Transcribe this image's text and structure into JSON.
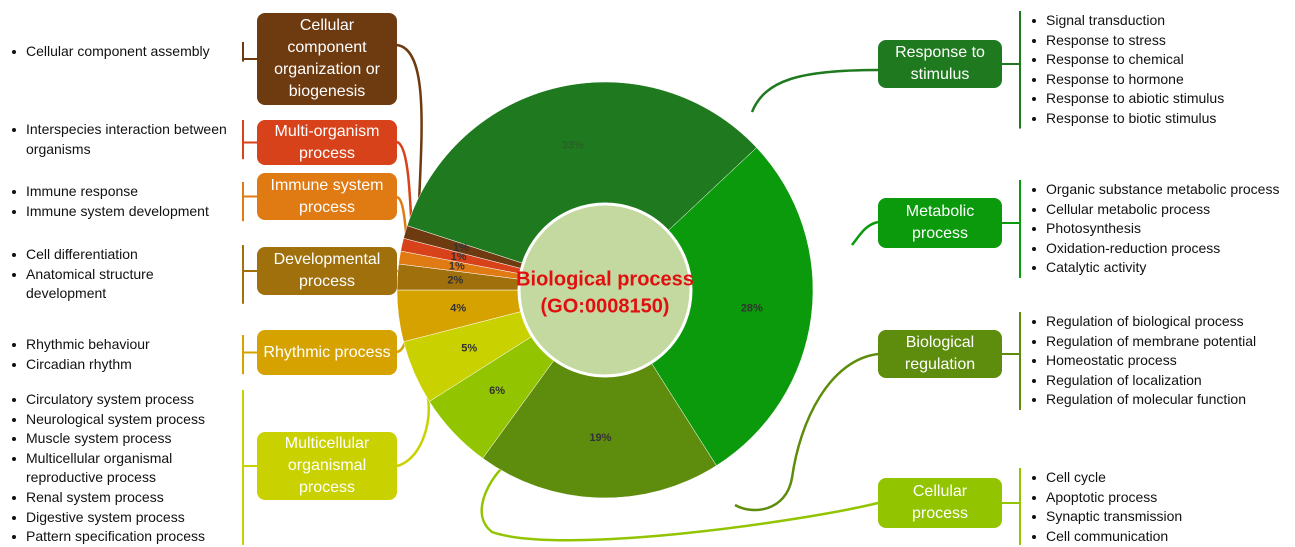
{
  "chart_data": {
    "type": "donut",
    "title": "Biological process",
    "subtitle": "(GO:0008150)",
    "categories": [
      "Response to stimulus",
      "Metabolic process",
      "Biological regulation",
      "Cellular process",
      "Multicellular organismal process",
      "Rhythmic process",
      "Developmental process",
      "Immune system process",
      "Multi-organism process",
      "Cellular component organization or biogenesis"
    ],
    "values": [
      33,
      28,
      19,
      6,
      5,
      4,
      2,
      1,
      1,
      1
    ],
    "value_labels": [
      "33%",
      "28%",
      "19%",
      "6%",
      "5%",
      "4%",
      "2%",
      "1%",
      "1%",
      "1%"
    ],
    "colors": [
      "#1f7a1f",
      "#0b9a0b",
      "#5e8c0c",
      "#92c400",
      "#c9d200",
      "#d5a200",
      "#a0700c",
      "#e07a12",
      "#d8421a",
      "#6e3a10"
    ],
    "details": [
      [
        "Signal transduction",
        "Response to stress",
        "Response to chemical",
        "Response to hormone",
        "Response to abiotic stimulus",
        "Response to biotic stimulus"
      ],
      [
        "Organic substance metabolic process",
        "Cellular metabolic process",
        "Photosynthesis",
        "Oxidation-reduction process",
        "Catalytic activity"
      ],
      [
        "Regulation of biological process",
        "Regulation of membrane potential",
        "Homeostatic process",
        "Regulation of localization",
        "Regulation of molecular function"
      ],
      [
        "Cell cycle",
        "Apoptotic process",
        "Synaptic transmission",
        "Cell communication"
      ],
      [
        "Circulatory system process",
        "Neurological system process",
        "Muscle system process",
        "Multicellular organismal reproductive process",
        "Renal system process",
        "Digestive system process",
        "Pattern specification process"
      ],
      [
        "Rhythmic behaviour",
        "Circadian rhythm"
      ],
      [
        "Cell differentiation",
        "Anatomical structure development"
      ],
      [
        "Immune response",
        "Immune system development"
      ],
      [
        "Interspecies interaction between organisms"
      ],
      [
        "Cellular component assembly"
      ]
    ]
  }
}
